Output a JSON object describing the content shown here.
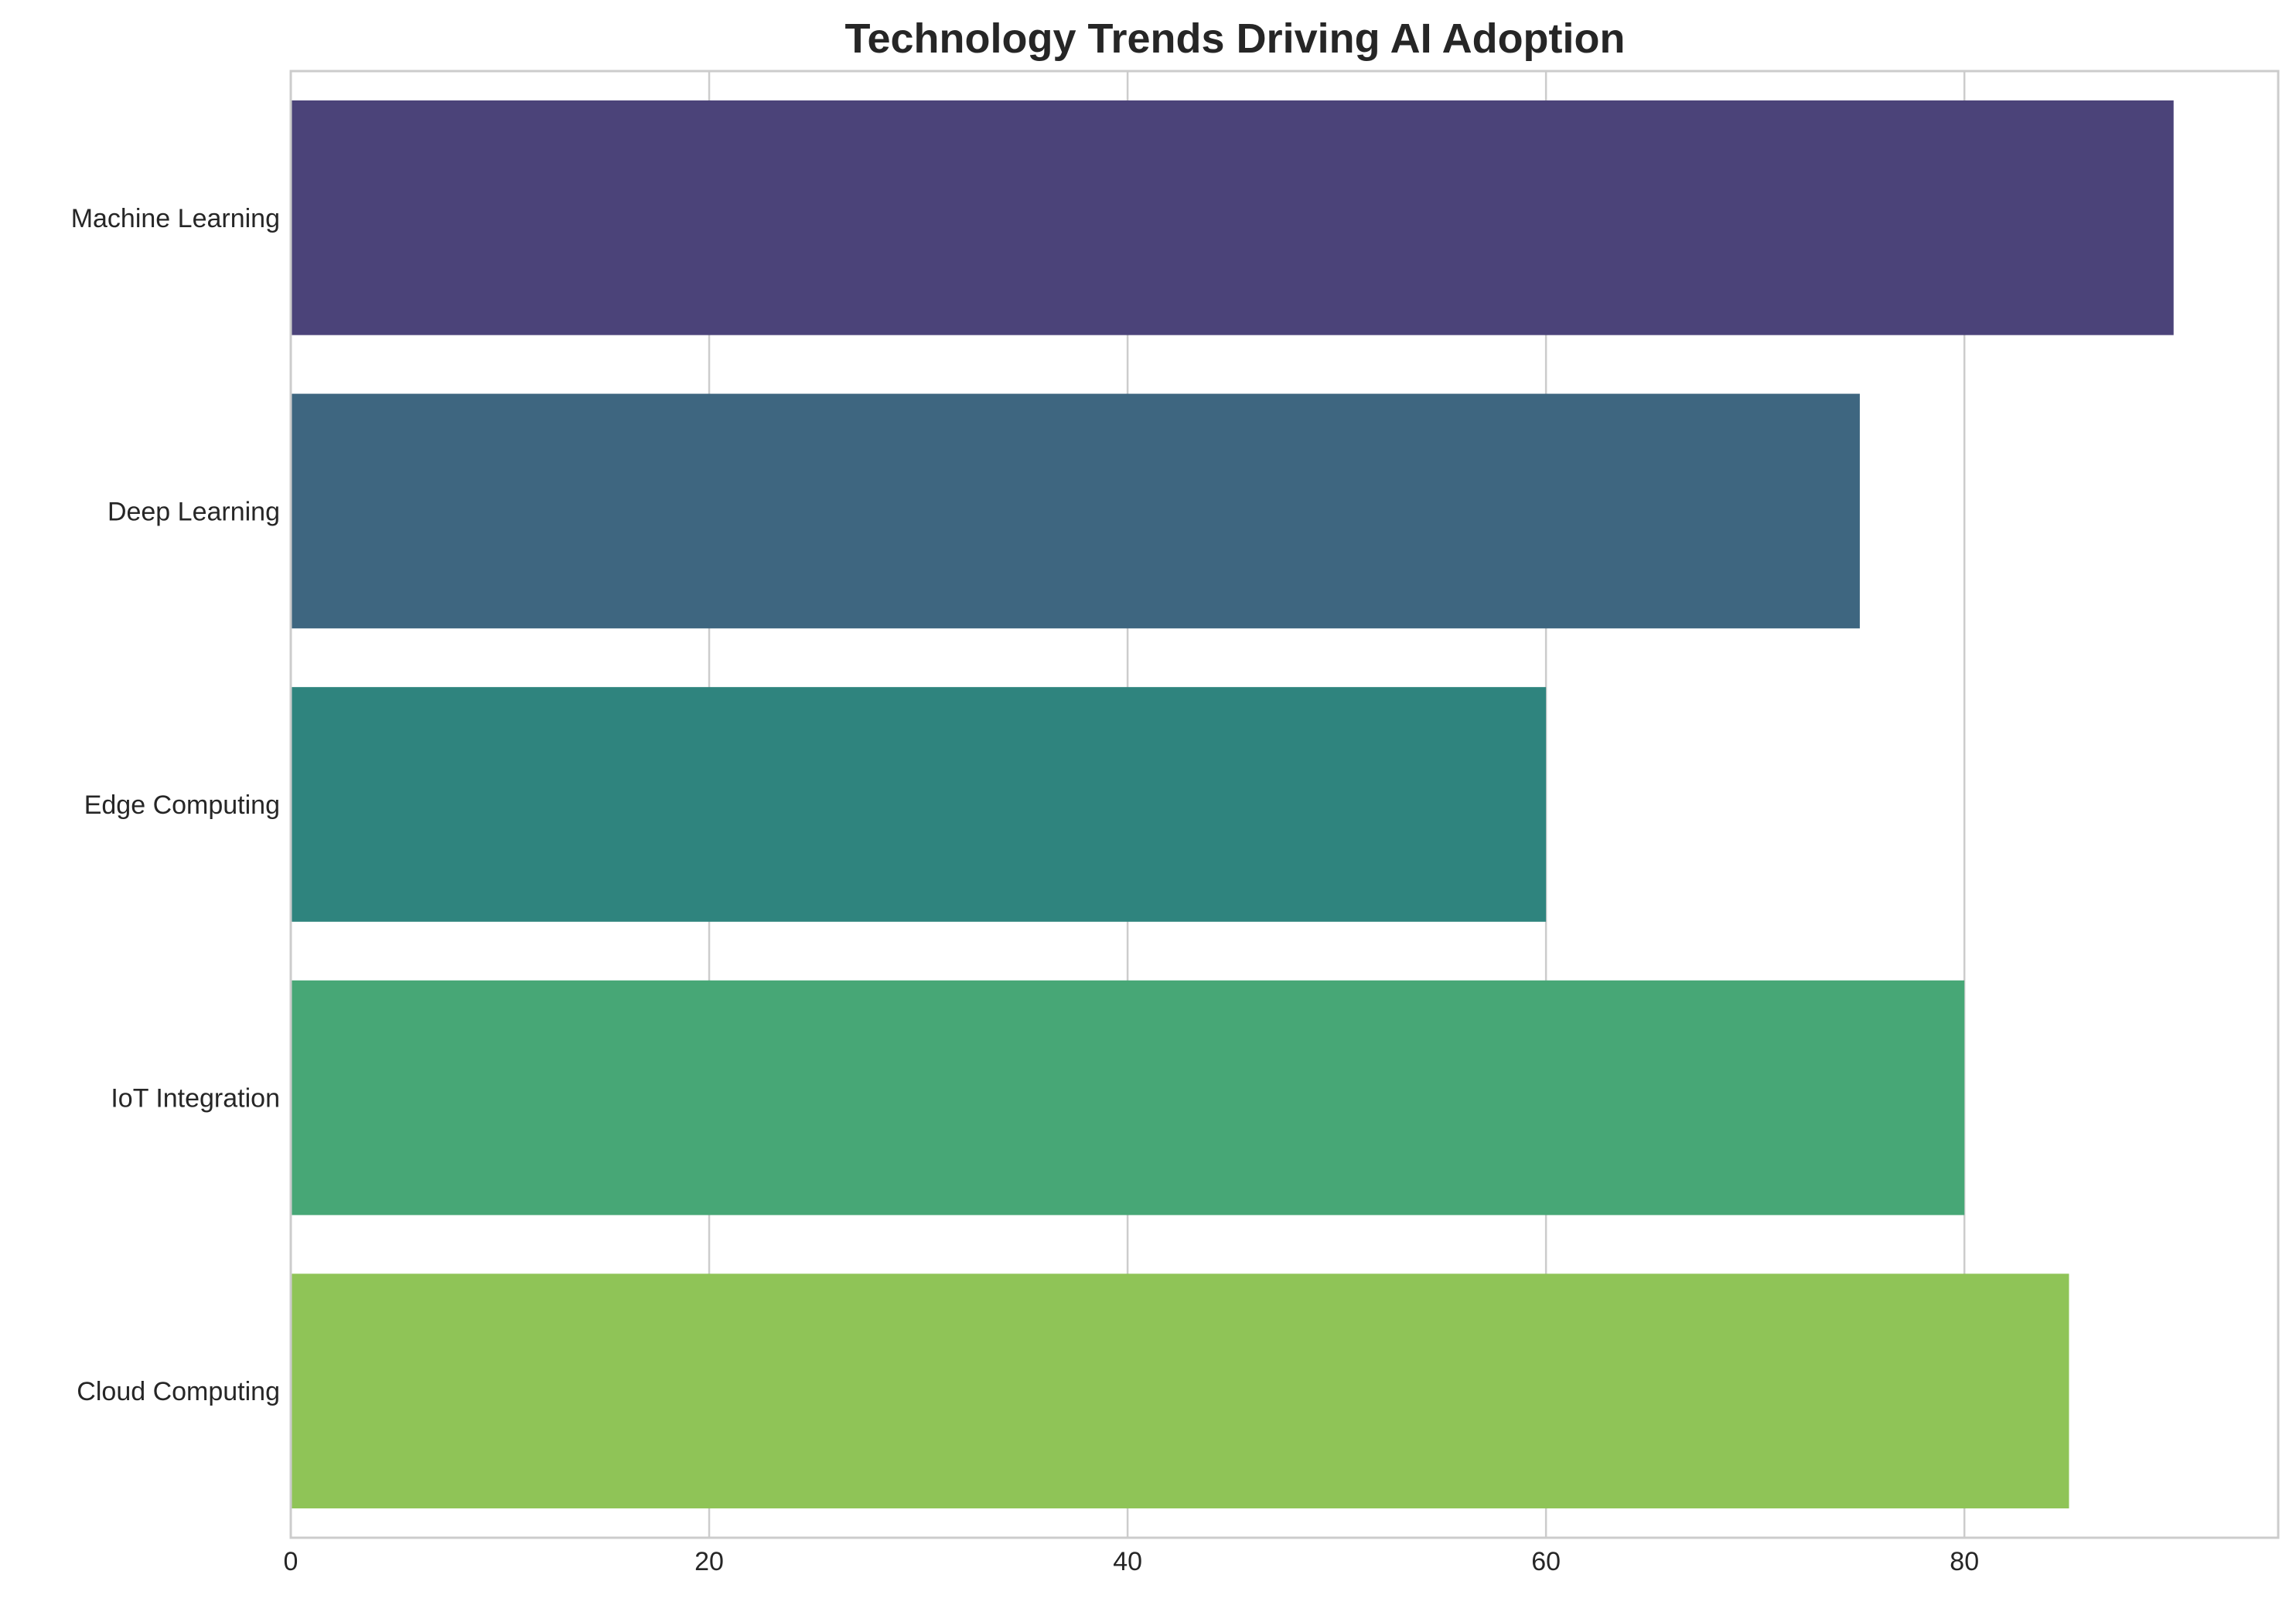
{
  "chart_data": {
    "type": "bar",
    "orientation": "horizontal",
    "title": "Technology Trends Driving AI Adoption",
    "xlabel": "",
    "ylabel": "",
    "categories": [
      "Machine Learning",
      "Deep Learning",
      "Edge Computing",
      "IoT Integration",
      "Cloud Computing"
    ],
    "values": [
      90,
      75,
      60,
      80,
      85
    ],
    "colors": [
      "#4b4379",
      "#3e6680",
      "#2f847e",
      "#47a776",
      "#8fc457"
    ],
    "xlim": [
      0,
      95
    ],
    "xticks": [
      0,
      20,
      40,
      60,
      80
    ],
    "xtick_labels": [
      "0",
      "20",
      "40",
      "60",
      "80"
    ],
    "grid": true,
    "legend": "none"
  }
}
